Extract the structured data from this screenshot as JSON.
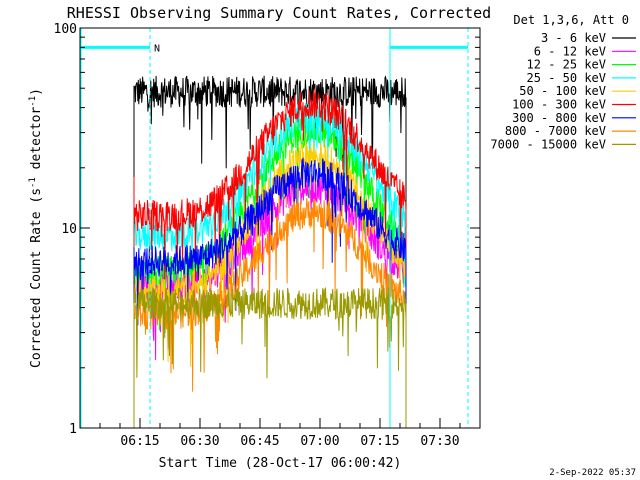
{
  "chart_data": {
    "type": "line",
    "title": "RHESSI Observing Summary Count Rates, Corrected",
    "xlabel": "Start Time (28-Oct-17 06:00:42)",
    "ylabel_main": "Corrected Count Rate (s",
    "ylabel_sup1": "-1",
    "ylabel_mid": " detector",
    "ylabel_sup2": "-1",
    "ylabel_end": ")",
    "yscale": "log",
    "ylim": [
      1,
      100
    ],
    "xlim_minutes": [
      0,
      100
    ],
    "x_ticks": [
      {
        "minute": 15,
        "label": "06:15"
      },
      {
        "minute": 30,
        "label": "06:30"
      },
      {
        "minute": 45,
        "label": "06:45"
      },
      {
        "minute": 60,
        "label": "07:00"
      },
      {
        "minute": 75,
        "label": "07:15"
      },
      {
        "minute": 90,
        "label": "07:30"
      }
    ],
    "y_ticks": [
      {
        "value": 1,
        "label": "1"
      },
      {
        "value": 10,
        "label": "10"
      },
      {
        "value": 100,
        "label": "100"
      }
    ],
    "legend_title": "Det 1,3,6, Att 0",
    "legend_position": "top-right outside",
    "data_window_minutes": [
      13.5,
      81.5
    ],
    "markers": {
      "night_end_minute": 17.5,
      "night_start_minute": 77.5,
      "saa_end_minute": 97,
      "night_label": "N",
      "bar_level": 80,
      "color": "#00ffff"
    },
    "series": [
      {
        "name": "3 - 6 keV",
        "color": "#000000",
        "base": 48,
        "peak": 48,
        "first": 50,
        "last": 45
      },
      {
        "name": "6 - 12 keV",
        "color": "#ff00ff",
        "base": 5.2,
        "peak": 16,
        "first": 6,
        "last": 5
      },
      {
        "name": "12 - 25 keV",
        "color": "#00ff00",
        "base": 6.0,
        "peak": 31,
        "first": 6,
        "last": 5.5
      },
      {
        "name": "25 - 50 keV",
        "color": "#00ffff",
        "base": 9.2,
        "peak": 36,
        "first": 13,
        "last": 9
      },
      {
        "name": "50 - 100 keV",
        "color": "#ffcc00",
        "base": 4.8,
        "peak": 23,
        "first": 5,
        "last": 4.8
      },
      {
        "name": "100 - 300 keV",
        "color": "#ff0000",
        "base": 11.5,
        "peak": 42,
        "first": 18,
        "last": 12
      },
      {
        "name": "300 - 800 keV",
        "color": "#0000ff",
        "base": 6.8,
        "peak": 19,
        "first": 8,
        "last": 6.5
      },
      {
        "name": "800 - 7000 keV",
        "color": "#ff8800",
        "base": 3.7,
        "peak": 12,
        "first": 4,
        "last": 3.5
      },
      {
        "name": "7000 - 15000 keV",
        "color": "#999900",
        "base": 4.2,
        "peak": 4.2,
        "first": 4.2,
        "last": 4.2
      }
    ],
    "peak_minute": 58,
    "peak_width_minutes": 10.5
  },
  "footer": {
    "timestamp": "2-Sep-2022 05:37"
  }
}
